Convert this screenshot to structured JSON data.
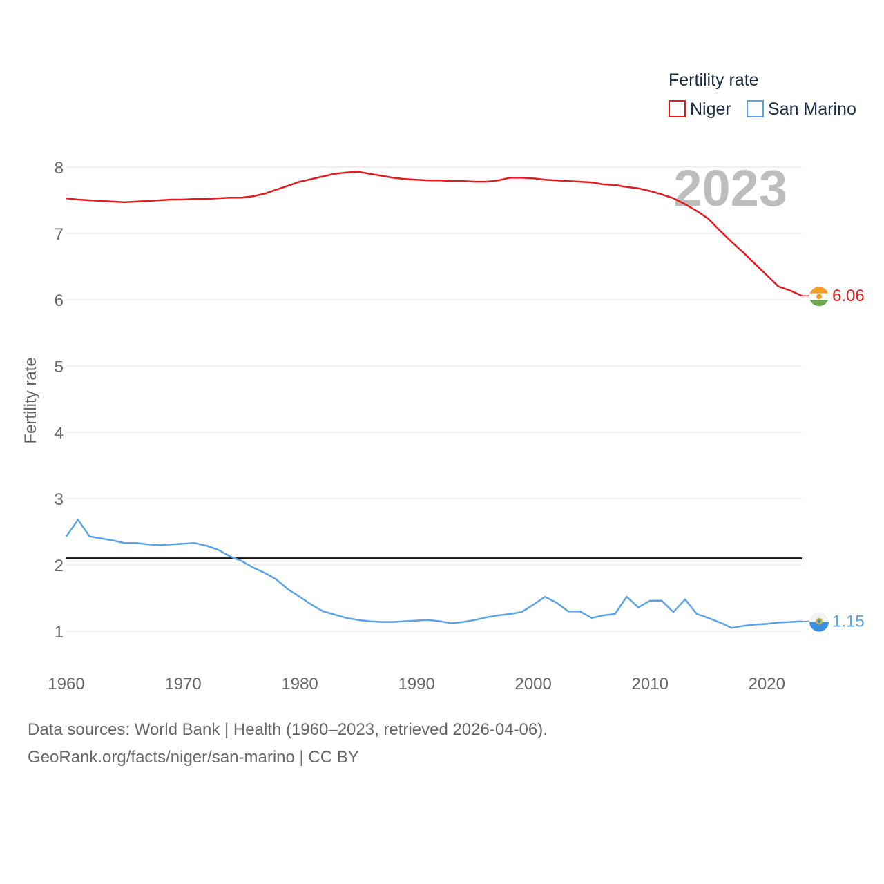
{
  "chart_data": {
    "type": "line",
    "ylabel": "Fertility rate",
    "xlabel": "",
    "xlim": [
      1960,
      2023
    ],
    "ylim": [
      1,
      8
    ],
    "x_ticks": [
      1960,
      1970,
      1980,
      1990,
      2000,
      2010,
      2020
    ],
    "y_ticks": [
      1,
      2,
      3,
      4,
      5,
      6,
      7,
      8
    ],
    "reference_line": 2.1,
    "current_year": "2023",
    "legend": {
      "title": "Fertility rate",
      "placement": "top-right"
    },
    "x": [
      1960,
      1961,
      1962,
      1963,
      1964,
      1965,
      1966,
      1967,
      1968,
      1969,
      1970,
      1971,
      1972,
      1973,
      1974,
      1975,
      1976,
      1977,
      1978,
      1979,
      1980,
      1981,
      1982,
      1983,
      1984,
      1985,
      1986,
      1987,
      1988,
      1989,
      1990,
      1991,
      1992,
      1993,
      1994,
      1995,
      1996,
      1997,
      1998,
      1999,
      2000,
      2001,
      2002,
      2003,
      2004,
      2005,
      2006,
      2007,
      2008,
      2009,
      2010,
      2011,
      2012,
      2013,
      2014,
      2015,
      2016,
      2017,
      2018,
      2019,
      2020,
      2021,
      2022,
      2023
    ],
    "series": [
      {
        "name": "Niger",
        "color": "#e41a1c",
        "end_label": "6.06",
        "flag": "niger-flag-icon",
        "values": [
          7.53,
          7.51,
          7.5,
          7.49,
          7.48,
          7.47,
          7.48,
          7.49,
          7.5,
          7.51,
          7.51,
          7.52,
          7.52,
          7.53,
          7.54,
          7.54,
          7.56,
          7.6,
          7.66,
          7.72,
          7.78,
          7.82,
          7.86,
          7.9,
          7.92,
          7.93,
          7.9,
          7.87,
          7.84,
          7.82,
          7.81,
          7.8,
          7.8,
          7.79,
          7.79,
          7.78,
          7.78,
          7.8,
          7.84,
          7.84,
          7.83,
          7.81,
          7.8,
          7.79,
          7.78,
          7.77,
          7.74,
          7.73,
          7.7,
          7.68,
          7.64,
          7.59,
          7.53,
          7.44,
          7.34,
          7.22,
          7.04,
          6.87,
          6.71,
          6.54,
          6.37,
          6.2,
          6.14,
          6.06
        ]
      },
      {
        "name": "San Marino",
        "color": "#5ba3e6",
        "end_label": "1.15",
        "flag": "san-marino-flag-icon",
        "values": [
          2.43,
          2.68,
          2.43,
          2.4,
          2.37,
          2.33,
          2.33,
          2.31,
          2.3,
          2.31,
          2.32,
          2.33,
          2.29,
          2.23,
          2.13,
          2.06,
          1.96,
          1.88,
          1.78,
          1.63,
          1.52,
          1.4,
          1.3,
          1.25,
          1.2,
          1.17,
          1.15,
          1.14,
          1.14,
          1.15,
          1.16,
          1.17,
          1.15,
          1.12,
          1.14,
          1.17,
          1.21,
          1.24,
          1.26,
          1.29,
          1.4,
          1.52,
          1.43,
          1.3,
          1.3,
          1.2,
          1.24,
          1.26,
          1.52,
          1.36,
          1.46,
          1.46,
          1.29,
          1.48,
          1.26,
          1.2,
          1.13,
          1.05,
          1.08,
          1.1,
          1.11,
          1.13,
          1.14,
          1.15
        ]
      }
    ]
  },
  "footer": {
    "line1": "Data sources: World Bank | Health (1960–2023, retrieved 2026-04-06).",
    "line2": "GeoRank.org/facts/niger/san-marino | CC BY"
  }
}
